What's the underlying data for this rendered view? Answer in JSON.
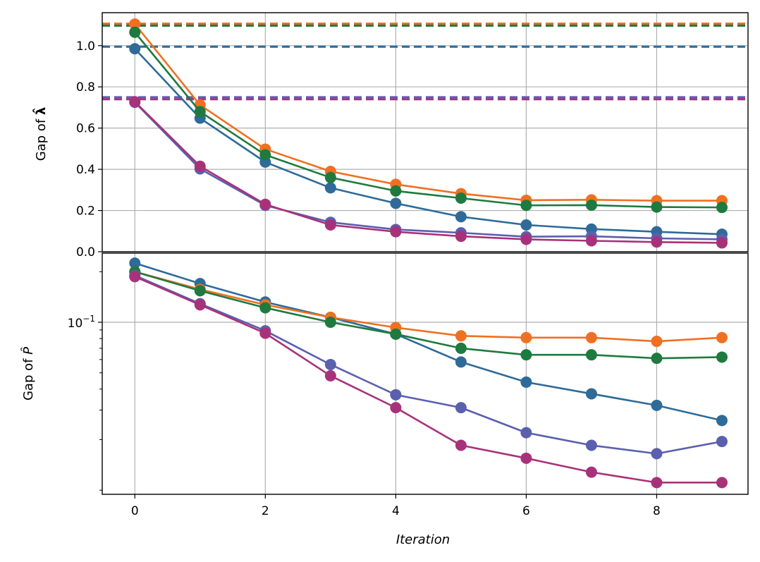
{
  "chart_data": [
    {
      "type": "line",
      "panel": "top",
      "ylabel_prefix": "Gap of ",
      "ylabel_symbol": "λ̂",
      "yscale": "linear",
      "ylim": [
        0.0,
        1.16
      ],
      "xlim": [
        -0.5,
        9.4
      ],
      "yticks": [
        0.0,
        0.2,
        0.4,
        0.6,
        0.8,
        1.0
      ],
      "ytick_labels": [
        "0.0",
        "0.2",
        "0.4",
        "0.6",
        "0.8",
        "1.0"
      ],
      "grid": true,
      "x": [
        0,
        1,
        2,
        3,
        4,
        5,
        6,
        7,
        8,
        9
      ],
      "series": [
        {
          "name": "blue",
          "color": "#2e6b99",
          "values": [
            0.985,
            0.648,
            0.435,
            0.31,
            0.235,
            0.17,
            0.13,
            0.11,
            0.097,
            0.085
          ],
          "reference": 0.995
        },
        {
          "name": "orange",
          "color": "#ef7022",
          "values": [
            1.105,
            0.712,
            0.498,
            0.39,
            0.327,
            0.282,
            0.25,
            0.252,
            0.248,
            0.248
          ],
          "reference": 1.107
        },
        {
          "name": "green",
          "color": "#1e7a3e",
          "values": [
            1.065,
            0.68,
            0.47,
            0.36,
            0.295,
            0.26,
            0.225,
            0.226,
            0.217,
            0.215
          ],
          "reference": 1.097
        },
        {
          "name": "purple",
          "color": "#5a5fae",
          "values": [
            0.725,
            0.402,
            0.225,
            0.143,
            0.108,
            0.092,
            0.073,
            0.075,
            0.065,
            0.06
          ],
          "reference": 0.75
        },
        {
          "name": "magenta",
          "color": "#a8327a",
          "values": [
            0.728,
            0.415,
            0.23,
            0.13,
            0.097,
            0.075,
            0.06,
            0.053,
            0.047,
            0.043
          ],
          "reference": 0.74
        }
      ]
    },
    {
      "type": "line",
      "panel": "bottom",
      "ylabel_prefix": "Gap of ",
      "ylabel_symbol": "P̂",
      "yscale": "log",
      "ylim": [
        0.00945,
        0.258
      ],
      "xlim": [
        -0.5,
        9.4
      ],
      "xticks": [
        0,
        2,
        4,
        6,
        8
      ],
      "xtick_labels": [
        "0",
        "2",
        "4",
        "6",
        "8"
      ],
      "xlabel": "Iteration",
      "ytick_major": 0.1,
      "ytick_major_base": "10",
      "ytick_major_exp": "−1",
      "yticks_minor": [
        0.01,
        0.02,
        0.03,
        0.04,
        0.05,
        0.06,
        0.07,
        0.08,
        0.09,
        0.2
      ],
      "grid": true,
      "x": [
        0,
        1,
        2,
        3,
        4,
        5,
        6,
        7,
        8,
        9
      ],
      "series": [
        {
          "name": "blue",
          "color": "#2e6b99",
          "values": [
            0.225,
            0.17,
            0.132,
            0.107,
            0.085,
            0.058,
            0.044,
            0.0375,
            0.032,
            0.026
          ]
        },
        {
          "name": "orange",
          "color": "#ef7022",
          "values": [
            0.2,
            0.157,
            0.127,
            0.107,
            0.093,
            0.083,
            0.081,
            0.081,
            0.077,
            0.081
          ]
        },
        {
          "name": "green",
          "color": "#1e7a3e",
          "values": [
            0.2,
            0.154,
            0.122,
            0.1,
            0.085,
            0.07,
            0.064,
            0.064,
            0.061,
            0.062
          ]
        },
        {
          "name": "purple",
          "color": "#5a5fae",
          "values": [
            0.19,
            0.129,
            0.089,
            0.056,
            0.037,
            0.031,
            0.022,
            0.0185,
            0.0165,
            0.0195
          ]
        },
        {
          "name": "magenta",
          "color": "#a8327a",
          "values": [
            0.187,
            0.127,
            0.086,
            0.048,
            0.031,
            0.0185,
            0.0155,
            0.0128,
            0.0111,
            0.0111
          ]
        }
      ]
    }
  ]
}
